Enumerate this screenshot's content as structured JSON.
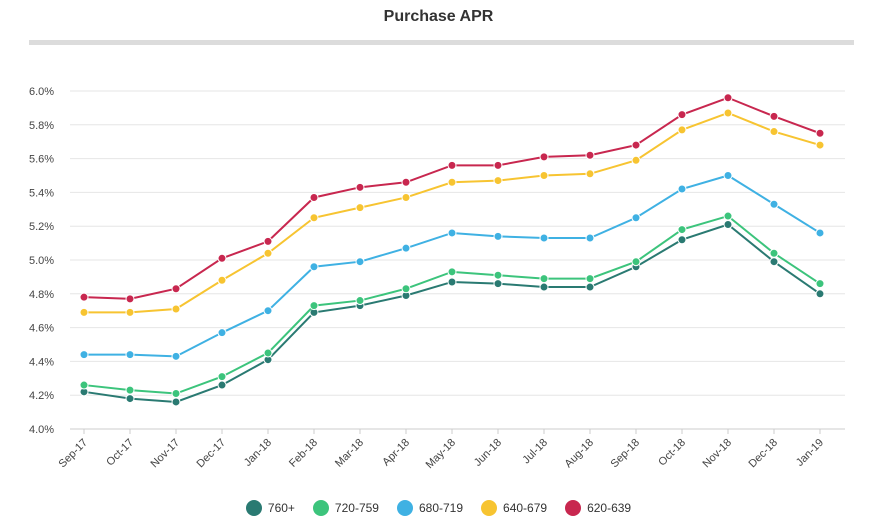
{
  "chart_data": {
    "type": "line",
    "title": "Purchase APR",
    "categories": [
      "Sep-17",
      "Oct-17",
      "Nov-17",
      "Dec-17",
      "Jan-18",
      "Feb-18",
      "Mar-18",
      "Apr-18",
      "May-18",
      "Jun-18",
      "Jul-18",
      "Aug-18",
      "Sep-18",
      "Oct-18",
      "Nov-18",
      "Dec-18",
      "Jan-19"
    ],
    "ylim": [
      4.0,
      6.0
    ],
    "yticks": [
      "4.0%",
      "4.2%",
      "4.4%",
      "4.6%",
      "4.8%",
      "5.0%",
      "5.2%",
      "5.4%",
      "5.6%",
      "5.8%",
      "6.0%"
    ],
    "grid": true,
    "legend_position": "bottom",
    "series": [
      {
        "name": "760+",
        "color": "#2a7a72",
        "values": [
          4.22,
          4.18,
          4.16,
          4.26,
          4.41,
          4.69,
          4.73,
          4.79,
          4.87,
          4.86,
          4.84,
          4.84,
          4.96,
          5.12,
          5.21,
          4.99,
          4.8
        ]
      },
      {
        "name": "720-759",
        "color": "#3cc47c",
        "values": [
          4.26,
          4.23,
          4.21,
          4.31,
          4.45,
          4.73,
          4.76,
          4.83,
          4.93,
          4.91,
          4.89,
          4.89,
          4.99,
          5.18,
          5.26,
          5.04,
          4.86
        ]
      },
      {
        "name": "680-719",
        "color": "#3fb1e3",
        "values": [
          4.44,
          4.44,
          4.43,
          4.57,
          4.7,
          4.96,
          4.99,
          5.07,
          5.16,
          5.14,
          5.13,
          5.13,
          5.25,
          5.42,
          5.5,
          5.33,
          5.16
        ]
      },
      {
        "name": "640-679",
        "color": "#f7c431",
        "values": [
          4.69,
          4.69,
          4.71,
          4.88,
          5.04,
          5.25,
          5.31,
          5.37,
          5.46,
          5.47,
          5.5,
          5.51,
          5.59,
          5.77,
          5.87,
          5.76,
          5.68
        ]
      },
      {
        "name": "620-639",
        "color": "#c8274f",
        "values": [
          4.78,
          4.77,
          4.83,
          5.01,
          5.11,
          5.37,
          5.43,
          5.46,
          5.56,
          5.56,
          5.61,
          5.62,
          5.68,
          5.86,
          5.96,
          5.85,
          5.75
        ]
      }
    ]
  }
}
